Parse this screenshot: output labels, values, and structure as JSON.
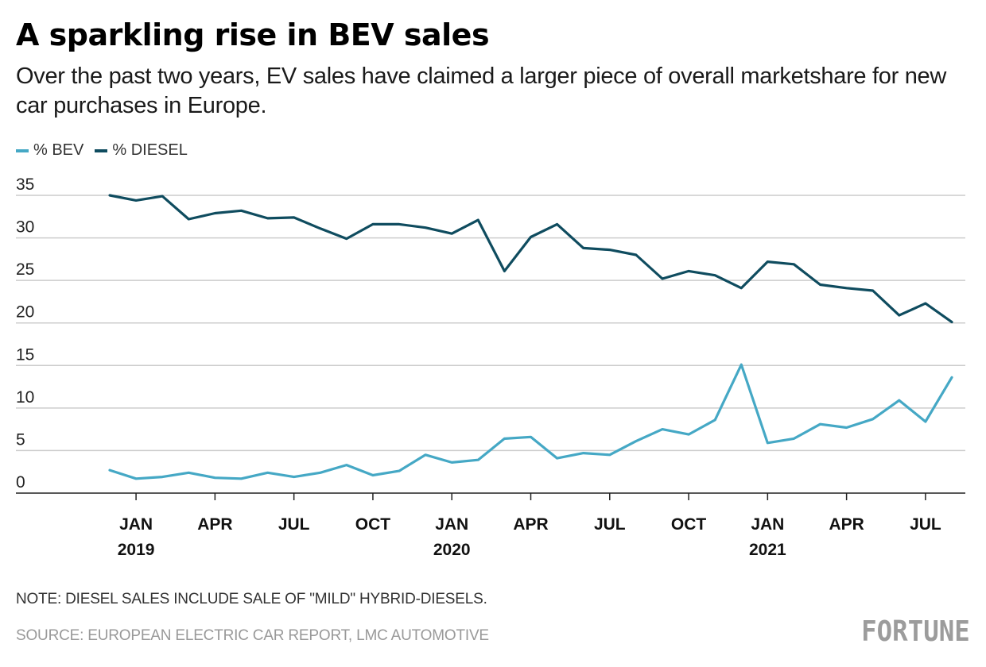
{
  "title": "A sparkling rise in BEV sales",
  "subtitle": "Over the past two years, EV sales have claimed a larger piece of overall marketshare for new car purchases in Europe.",
  "note": "NOTE: DIESEL SALES INCLUDE SALE OF \"MILD\" HYBRID-DIESELS.",
  "source": "SOURCE: EUROPEAN ELECTRIC CAR REPORT, LMC AUTOMOTIVE",
  "logo": "FORTUNE",
  "colors": {
    "bev": "#45a8c5",
    "diesel": "#0f4c5f",
    "grid": "#cccccc",
    "axis": "#222222"
  },
  "chart_data": {
    "type": "line",
    "title": "",
    "xlabel": "",
    "ylabel": "",
    "ylim": [
      0,
      35
    ],
    "yticks": [
      0,
      5,
      10,
      15,
      20,
      25,
      30,
      35
    ],
    "grid": true,
    "legend_position": "top-left",
    "x": [
      "2018-12",
      "2019-01",
      "2019-02",
      "2019-03",
      "2019-04",
      "2019-05",
      "2019-06",
      "2019-07",
      "2019-08",
      "2019-09",
      "2019-10",
      "2019-11",
      "2019-12",
      "2020-01",
      "2020-02",
      "2020-03",
      "2020-04",
      "2020-05",
      "2020-06",
      "2020-07",
      "2020-08",
      "2020-09",
      "2020-10",
      "2020-11",
      "2020-12",
      "2021-01",
      "2021-02",
      "2021-03",
      "2021-04",
      "2021-05",
      "2021-06",
      "2021-07",
      "2021-08"
    ],
    "xticks": [
      {
        "month": "JAN",
        "year": "2019"
      },
      {
        "month": "APR",
        "year": ""
      },
      {
        "month": "JUL",
        "year": ""
      },
      {
        "month": "OCT",
        "year": ""
      },
      {
        "month": "JAN",
        "year": "2020"
      },
      {
        "month": "APR",
        "year": ""
      },
      {
        "month": "JUL",
        "year": ""
      },
      {
        "month": "OCT",
        "year": ""
      },
      {
        "month": "JAN",
        "year": "2021"
      },
      {
        "month": "APR",
        "year": ""
      },
      {
        "month": "JUL",
        "year": ""
      }
    ],
    "series": [
      {
        "name": "% BEV",
        "values": [
          2.7,
          1.7,
          1.9,
          2.4,
          1.8,
          1.7,
          2.4,
          1.9,
          2.4,
          3.3,
          2.1,
          2.6,
          4.5,
          3.6,
          3.9,
          6.4,
          6.6,
          4.1,
          4.7,
          4.5,
          6.1,
          7.5,
          6.9,
          8.6,
          15.1,
          5.9,
          6.4,
          8.1,
          7.7,
          8.7,
          10.9,
          8.4,
          13.6
        ]
      },
      {
        "name": "% DIESEL",
        "values": [
          35.0,
          34.4,
          34.9,
          32.2,
          32.9,
          33.2,
          32.3,
          32.4,
          31.1,
          29.9,
          31.6,
          31.6,
          31.2,
          30.5,
          32.1,
          26.1,
          30.1,
          31.6,
          28.8,
          28.6,
          28.0,
          25.2,
          26.1,
          25.6,
          24.1,
          27.2,
          26.9,
          24.5,
          24.1,
          23.8,
          20.9,
          22.3,
          20.1
        ]
      }
    ]
  }
}
